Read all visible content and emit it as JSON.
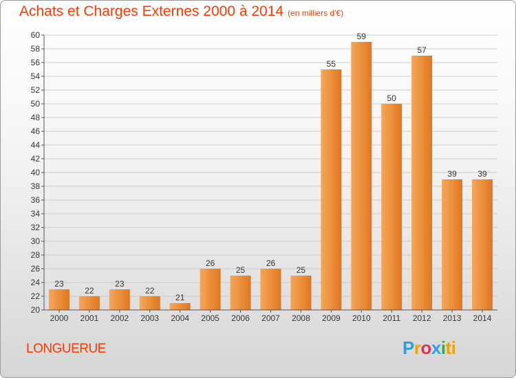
{
  "title": "Achats et Charges Externes 2000 à 2014",
  "unit": "(en milliers d'€)",
  "city": "LONGUERUE",
  "logo": [
    "P",
    "r",
    "o",
    "x",
    "i",
    "ti"
  ],
  "colors": {
    "bar_top": "#f5a75a",
    "bar_bottom": "#e0771e",
    "title": "#ff3800",
    "axis": "#555555",
    "grid": "#cccccc"
  },
  "chart_data": {
    "type": "bar",
    "title": "Achats et Charges Externes 2000 à 2014",
    "categories": [
      "2000",
      "2001",
      "2002",
      "2003",
      "2004",
      "2005",
      "2006",
      "2007",
      "2008",
      "2009",
      "2010",
      "2011",
      "2012",
      "2013",
      "2014"
    ],
    "values": [
      23,
      22,
      23,
      22,
      21,
      26,
      25,
      26,
      25,
      55,
      59,
      50,
      57,
      39,
      39
    ],
    "ylim": [
      20,
      60
    ],
    "yticks": [
      20,
      22,
      24,
      26,
      28,
      30,
      32,
      34,
      36,
      38,
      40,
      42,
      44,
      46,
      48,
      50,
      52,
      54,
      56,
      58,
      60
    ],
    "xlabel": "",
    "ylabel": "",
    "grid": true,
    "data_labels": true
  }
}
